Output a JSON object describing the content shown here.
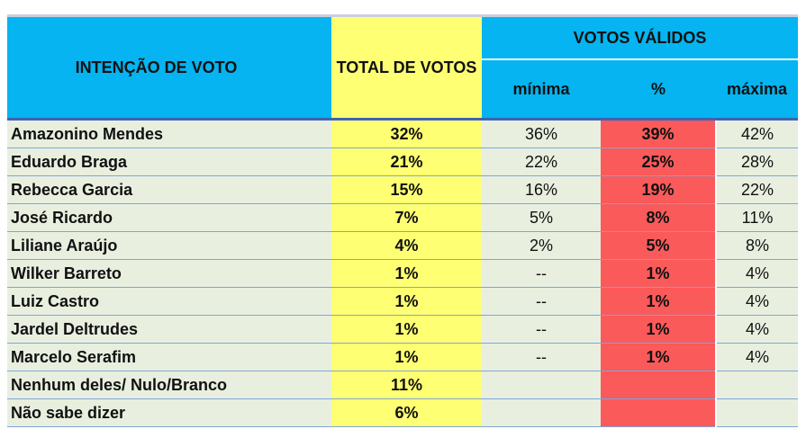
{
  "chart_data": {
    "type": "table",
    "headers": {
      "candidate": "INTENÇÃO DE VOTO",
      "total": "TOTAL DE VOTOS",
      "valid_group": "VOTOS VÁLIDOS",
      "min": "mínima",
      "pct": "%",
      "max": "máxima"
    },
    "rows": [
      {
        "name": "Amazonino Mendes",
        "total": "32%",
        "min": "36%",
        "pct": "39%",
        "max": "42%"
      },
      {
        "name": "Eduardo Braga",
        "total": "21%",
        "min": "22%",
        "pct": "25%",
        "max": "28%"
      },
      {
        "name": "Rebecca Garcia",
        "total": "15%",
        "min": "16%",
        "pct": "19%",
        "max": "22%"
      },
      {
        "name": "José Ricardo",
        "total": "7%",
        "min": "5%",
        "pct": "8%",
        "max": "11%"
      },
      {
        "name": "Liliane Araújo",
        "total": "4%",
        "min": "2%",
        "pct": "5%",
        "max": "8%"
      },
      {
        "name": "Wilker Barreto",
        "total": "1%",
        "min": "--",
        "pct": "1%",
        "max": "4%"
      },
      {
        "name": "Luiz Castro",
        "total": "1%",
        "min": "--",
        "pct": "1%",
        "max": "4%"
      },
      {
        "name": "Jardel Deltrudes",
        "total": "1%",
        "min": "--",
        "pct": "1%",
        "max": "4%"
      },
      {
        "name": "Marcelo Serafim",
        "total": "1%",
        "min": "--",
        "pct": "1%",
        "max": "4%"
      },
      {
        "name": "Nenhum deles/ Nulo/Branco",
        "total": "11%",
        "min": "",
        "pct": "",
        "max": ""
      },
      {
        "name": "Não sabe dizer",
        "total": "6%",
        "min": "",
        "pct": "",
        "max": ""
      }
    ],
    "colors": {
      "header": "#05b4f0",
      "total_column": "#ffff73",
      "pct_column": "#fb5a5a",
      "body": "#e8efdf"
    }
  }
}
